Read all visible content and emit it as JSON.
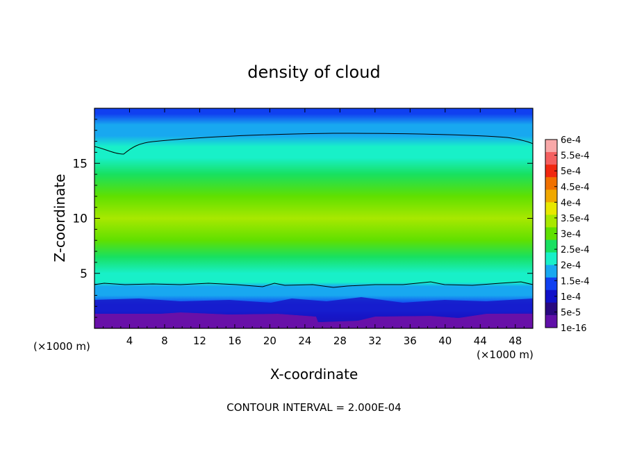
{
  "chart_data": {
    "type": "heatmap",
    "title": "density of cloud",
    "xlabel": "X-coordinate",
    "ylabel": "Z-coordinate",
    "x_unit_label": "(×1000 m)",
    "x_unit_label_right": "(×1000 m)",
    "xlim": [
      0,
      50
    ],
    "ylim": [
      0,
      20
    ],
    "x_ticks": [
      4,
      8,
      12,
      16,
      20,
      24,
      28,
      32,
      36,
      40,
      44,
      48
    ],
    "y_ticks": [
      5,
      10,
      15
    ],
    "footer": "CONTOUR INTERVAL = 2.000E-04",
    "colorbar": {
      "labels": [
        "6e-4",
        "5.5e-4",
        "5e-4",
        "4.5e-4",
        "4e-4",
        "3.5e-4",
        "3e-4",
        "2.5e-4",
        "2e-4",
        "1.5e-4",
        "1e-4",
        "5e-5",
        "1e-16"
      ],
      "colors": [
        "#f8a8a8",
        "#f46060",
        "#f02810",
        "#f07000",
        "#f0a800",
        "#e8e800",
        "#a8e800",
        "#60e000",
        "#18e060",
        "#18f0c8",
        "#18a8f0",
        "#1040f0",
        "#1010c8",
        "#280880",
        "#6010a8"
      ]
    },
    "profile": {
      "description_levels": "density by height",
      "z": [
        0.5,
        1.2,
        1.6,
        2.2,
        3.0,
        3.8,
        4.2,
        5.0,
        6.5,
        8.0,
        10.0,
        12.0,
        14.0,
        15.5,
        16.5,
        17.5,
        18.5,
        19.5
      ],
      "density": [
        5e-05,
        8e-05,
        0.00012,
        0.00014,
        0.00016,
        0.00018,
        0.0002,
        0.00023,
        0.00026,
        0.00031,
        0.00034,
        0.00031,
        0.00026,
        0.00022,
        0.0002,
        0.00018,
        0.00015,
        0.00012
      ]
    }
  }
}
